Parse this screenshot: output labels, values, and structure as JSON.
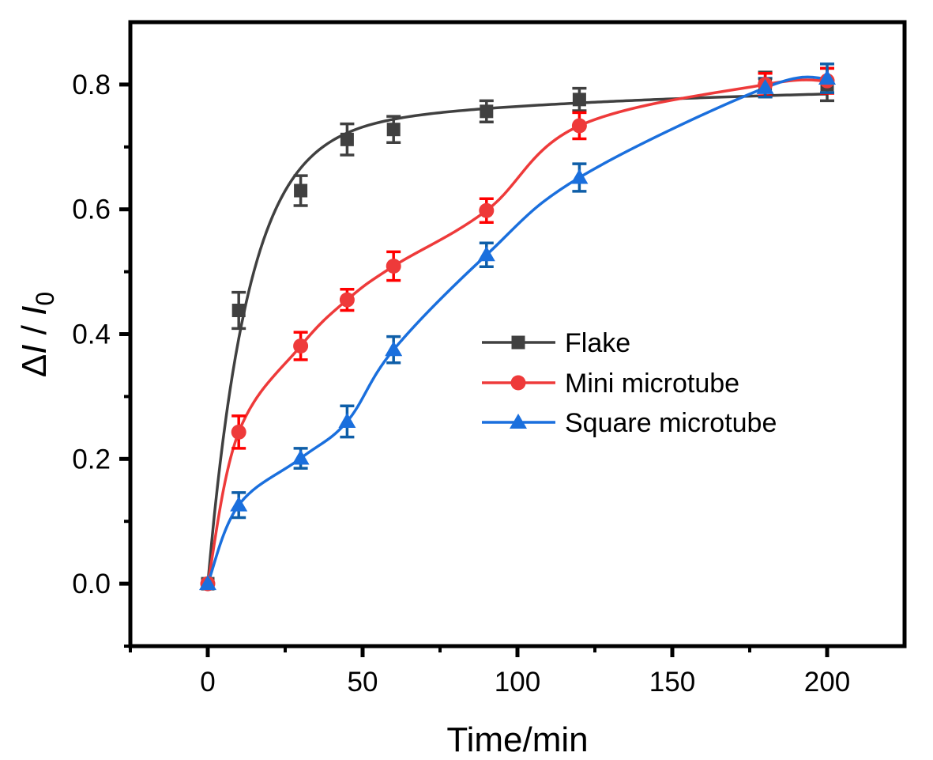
{
  "chart_data": {
    "type": "line",
    "title": "",
    "xlabel": "Time/min",
    "ylabel": {
      "delta": "Δ",
      "var": "I",
      "sep": " / ",
      "var2": "I",
      "sub": "0"
    },
    "xlim": [
      -25,
      225
    ],
    "ylim": [
      -0.1,
      0.9
    ],
    "x_ticks": [
      0,
      50,
      100,
      150,
      200
    ],
    "x_tick_labels": [
      "0",
      "50",
      "100",
      "150",
      "200"
    ],
    "x_minor_ticks": [
      -25,
      25,
      75,
      125,
      175
    ],
    "y_ticks": [
      0.0,
      0.2,
      0.4,
      0.6,
      0.8
    ],
    "y_tick_labels": [
      "0.0",
      "0.2",
      "0.4",
      "0.6",
      "0.8"
    ],
    "y_minor_ticks": [
      -0.1,
      0.1,
      0.3,
      0.5,
      0.7
    ],
    "grid": false,
    "legend_position": "center-right",
    "x": [
      0,
      10,
      30,
      45,
      60,
      90,
      120,
      180,
      200
    ],
    "series": [
      {
        "name": "Flake",
        "color": "#404040",
        "marker": "square",
        "values": [
          0.0,
          0.438,
          0.63,
          0.712,
          0.728,
          0.757,
          0.776,
          0.8,
          0.8
        ],
        "errors": [
          0.0,
          0.029,
          0.024,
          0.025,
          0.021,
          0.017,
          0.018,
          0.02,
          0.026
        ]
      },
      {
        "name": "Mini microtube",
        "color": "#ee3a3a",
        "error_color": "#ff0000",
        "marker": "circle",
        "values": [
          0.0,
          0.243,
          0.381,
          0.455,
          0.509,
          0.598,
          0.734,
          0.8,
          0.806
        ],
        "errors": [
          0.0,
          0.026,
          0.022,
          0.017,
          0.023,
          0.019,
          0.021,
          0.018,
          0.02
        ]
      },
      {
        "name": "Square microtube",
        "color": "#1a6fdd",
        "error_color": "#0e5ea8",
        "marker": "triangle",
        "values": [
          0.0,
          0.126,
          0.201,
          0.26,
          0.375,
          0.527,
          0.651,
          0.795,
          0.81
        ],
        "errors": [
          0.0,
          0.02,
          0.016,
          0.025,
          0.021,
          0.019,
          0.022,
          0.015,
          0.023
        ]
      }
    ]
  }
}
